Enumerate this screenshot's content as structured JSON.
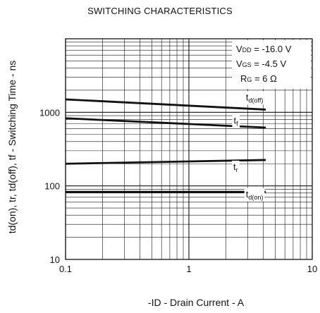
{
  "chart_data": {
    "type": "line",
    "title": "SWITCHING CHARACTERISTICS",
    "xlabel": "-ID - Drain Current - A",
    "ylabel": "td(on), tr, td(off), tf - Switching Time - ns",
    "xscale": "log",
    "yscale": "log",
    "xlim": [
      0.1,
      10
    ],
    "ylim": [
      10,
      10000
    ],
    "grid": true,
    "x_ticks": [
      0.1,
      1,
      10
    ],
    "x_tick_labels": [
      "0.1",
      "1",
      "10"
    ],
    "y_ticks": [
      10,
      100,
      1000
    ],
    "y_tick_labels": [
      "10",
      "100",
      "1000"
    ],
    "series": [
      {
        "name": "td(off)",
        "label_main": "t",
        "label_sub": "d(off)",
        "x": [
          0.1,
          4.2
        ],
        "y": [
          1500,
          1090
        ]
      },
      {
        "name": "tf",
        "label_main": "t",
        "label_sub": "f",
        "x": [
          0.1,
          4.2
        ],
        "y": [
          830,
          620
        ]
      },
      {
        "name": "tr",
        "label_main": "t",
        "label_sub": "r",
        "x": [
          0.1,
          4.2
        ],
        "y": [
          200,
          225
        ]
      },
      {
        "name": "td(on)",
        "label_main": "t",
        "label_sub": "d(on)",
        "x": [
          0.1,
          4.2
        ],
        "y": [
          83,
          83
        ]
      }
    ],
    "conditions": [
      {
        "main": "V",
        "sub": "DD",
        "rest": " = -16.0 V"
      },
      {
        "main": "V",
        "sub": "GS",
        "rest": " = -4.5 V"
      },
      {
        "main": "R",
        "sub": "G",
        "rest": " = 6 Ω"
      }
    ],
    "legend_position": "top-right"
  }
}
